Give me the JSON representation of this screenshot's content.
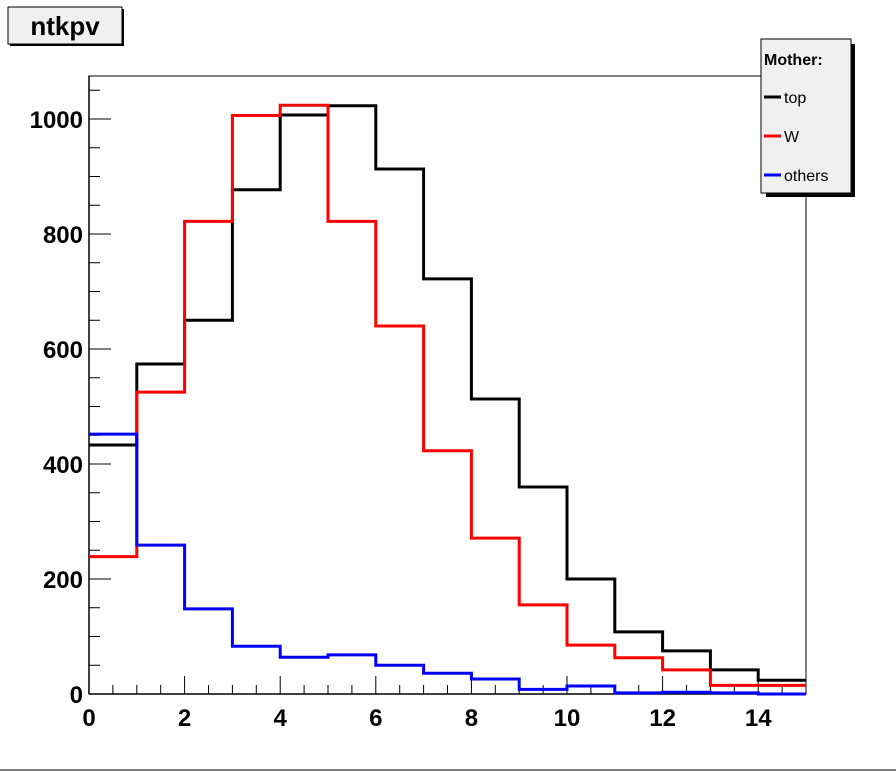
{
  "chart_data": {
    "type": "line",
    "style": "step-histogram",
    "title": "ntkpv",
    "xlabel": "",
    "ylabel": "",
    "xlim": [
      0,
      15
    ],
    "ylim": [
      0,
      1075
    ],
    "bin_edges": [
      0,
      1,
      2,
      3,
      4,
      5,
      6,
      7,
      8,
      9,
      10,
      11,
      12,
      13,
      14,
      15
    ],
    "x_ticks": [
      "0",
      "2",
      "4",
      "6",
      "8",
      "10",
      "12",
      "14"
    ],
    "y_ticks": [
      "0",
      "200",
      "400",
      "600",
      "800",
      "1000"
    ],
    "legend": {
      "title": "Mother:",
      "placement": "top-right",
      "entries": [
        "top",
        "W",
        "others"
      ]
    },
    "series": [
      {
        "name": "top",
        "color": "#000000",
        "values": [
          433,
          574,
          650,
          877,
          1007,
          1023,
          913,
          722,
          513,
          360,
          200,
          108,
          75,
          42,
          24
        ]
      },
      {
        "name": "W",
        "color": "#ff0000",
        "values": [
          239,
          525,
          822,
          1006,
          1024,
          822,
          640,
          423,
          271,
          155,
          85,
          63,
          42,
          15,
          15
        ]
      },
      {
        "name": "others",
        "color": "#0000ff",
        "values": [
          452,
          259,
          148,
          83,
          64,
          68,
          50,
          36,
          26,
          8,
          14,
          2,
          3,
          2,
          0
        ]
      }
    ]
  }
}
